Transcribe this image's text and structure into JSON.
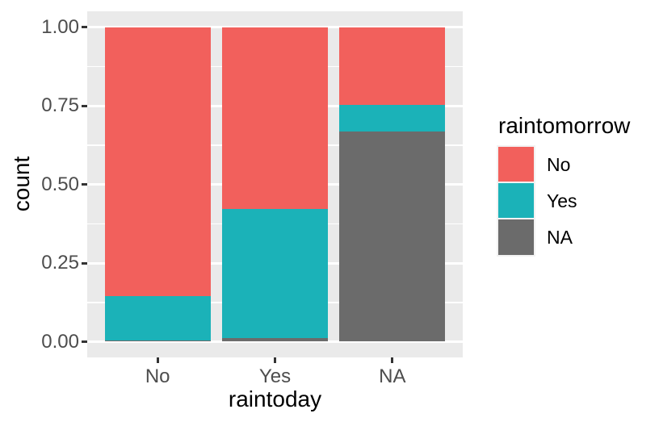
{
  "chart_data": {
    "type": "bar",
    "stacked": true,
    "normalized": true,
    "xlabel": "raintoday",
    "ylabel": "count",
    "categories": [
      "No",
      "Yes",
      "NA"
    ],
    "series": [
      {
        "name": "No",
        "color": "#F2605C",
        "values": [
          0.856,
          0.579,
          0.247
        ]
      },
      {
        "name": "Yes",
        "color": "#1BB2B8",
        "values": [
          0.139,
          0.409,
          0.086
        ]
      },
      {
        "name": "NA",
        "color": "#6B6B6B",
        "values": [
          0.005,
          0.012,
          0.667
        ]
      }
    ],
    "ylim": [
      0,
      1
    ],
    "yticks": [
      0,
      0.25,
      0.5,
      0.75,
      1
    ],
    "ytick_labels": [
      "0.00",
      "0.25",
      "0.50",
      "0.75",
      "1.00"
    ],
    "minor_yticks": [
      0.125,
      0.375,
      0.625,
      0.875
    ],
    "legend": {
      "title": "raintomorrow",
      "position": "right",
      "entries": [
        "No",
        "Yes",
        "NA"
      ]
    },
    "grid": true,
    "bar_width_fraction": 0.9,
    "colors": {
      "panel_background": "#EAEAEA",
      "grid": "#FFFFFF",
      "axis_text": "#4D4D4D",
      "tick_mark": "#333333",
      "axis_title": "#000000",
      "figure_background": "#FFFFFF"
    }
  }
}
